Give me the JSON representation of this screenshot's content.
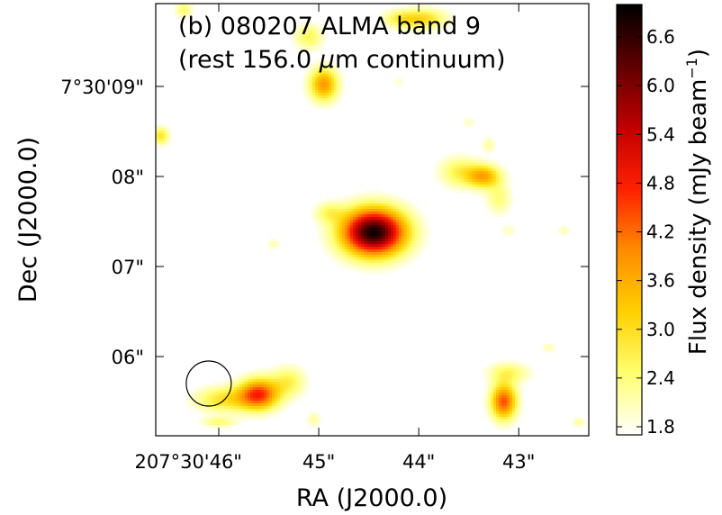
{
  "chart_data": {
    "type": "heatmap",
    "title_line1": "(b) 080207 ALMA band 9",
    "title_line2_prefix": "(rest 156.0 ",
    "title_line2_mu": "μ",
    "title_line2_suffix": "m continuum)",
    "xlabel": "RA (J2000.0)",
    "ylabel": "Dec (J2000.0)",
    "x_ticks": [
      {
        "value": 46,
        "label": "207°30'46\""
      },
      {
        "value": 45,
        "label": "45\""
      },
      {
        "value": 44,
        "label": "44\""
      },
      {
        "value": 43,
        "label": "43\""
      }
    ],
    "y_ticks": [
      {
        "value": 9,
        "label": "7°30'09\""
      },
      {
        "value": 8,
        "label": "08\""
      },
      {
        "value": 7,
        "label": "07\""
      },
      {
        "value": 6,
        "label": "06\""
      }
    ],
    "xlim": [
      46.63,
      42.3
    ],
    "ylim": [
      5.12,
      9.92
    ],
    "colorbar": {
      "label_prefix": "Flux density (mJy beam",
      "label_sup": "−1",
      "label_suffix": ")",
      "range": [
        1.7,
        7.0
      ],
      "ticks": [
        "1.8",
        "2.4",
        "3.0",
        "3.6",
        "4.2",
        "4.8",
        "5.4",
        "6.0",
        "6.6"
      ],
      "colormap": "hot_r",
      "stops": [
        "#ffffff",
        "#ffff70",
        "#ffd000",
        "#ff8c00",
        "#ff2000",
        "#c00000",
        "#600000",
        "#000000"
      ]
    },
    "beam": {
      "ra": 46.1,
      "dec": 5.7,
      "major": 0.5,
      "minor": 0.45
    },
    "sources": [
      {
        "ra": 44.45,
        "dec": 7.38,
        "peak": 6.9,
        "sx": 0.22,
        "sy": 0.18
      },
      {
        "ra": 45.6,
        "dec": 5.58,
        "peak": 4.6,
        "sx": 0.14,
        "sy": 0.12
      },
      {
        "ra": 45.95,
        "dec": 5.52,
        "peak": 2.9,
        "sx": 0.2,
        "sy": 0.1
      },
      {
        "ra": 45.3,
        "dec": 5.72,
        "peak": 2.6,
        "sx": 0.12,
        "sy": 0.12
      },
      {
        "ra": 43.15,
        "dec": 5.5,
        "peak": 4.4,
        "sx": 0.09,
        "sy": 0.14
      },
      {
        "ra": 43.1,
        "dec": 5.82,
        "peak": 2.5,
        "sx": 0.15,
        "sy": 0.08
      },
      {
        "ra": 43.35,
        "dec": 8.0,
        "peak": 3.6,
        "sx": 0.12,
        "sy": 0.09
      },
      {
        "ra": 43.6,
        "dec": 8.05,
        "peak": 2.6,
        "sx": 0.14,
        "sy": 0.12
      },
      {
        "ra": 43.2,
        "dec": 7.75,
        "peak": 2.4,
        "sx": 0.09,
        "sy": 0.12
      },
      {
        "ra": 43.3,
        "dec": 8.35,
        "peak": 2.2,
        "sx": 0.05,
        "sy": 0.06
      },
      {
        "ra": 44.95,
        "dec": 9.02,
        "peak": 3.8,
        "sx": 0.1,
        "sy": 0.13
      },
      {
        "ra": 45.1,
        "dec": 9.55,
        "peak": 2.6,
        "sx": 0.1,
        "sy": 0.1
      },
      {
        "ra": 43.95,
        "dec": 9.75,
        "peak": 3.0,
        "sx": 0.16,
        "sy": 0.08
      },
      {
        "ra": 44.2,
        "dec": 9.75,
        "peak": 2.5,
        "sx": 0.12,
        "sy": 0.07
      },
      {
        "ra": 44.9,
        "dec": 7.6,
        "peak": 2.4,
        "sx": 0.1,
        "sy": 0.08
      },
      {
        "ra": 46.58,
        "dec": 8.45,
        "peak": 2.9,
        "sx": 0.06,
        "sy": 0.07
      },
      {
        "ra": 46.35,
        "dec": 9.85,
        "peak": 2.5,
        "sx": 0.06,
        "sy": 0.06
      },
      {
        "ra": 42.55,
        "dec": 7.4,
        "peak": 2.1,
        "sx": 0.05,
        "sy": 0.04
      },
      {
        "ra": 45.45,
        "dec": 7.25,
        "peak": 2.1,
        "sx": 0.05,
        "sy": 0.04
      },
      {
        "ra": 45.05,
        "dec": 5.3,
        "peak": 2.2,
        "sx": 0.05,
        "sy": 0.06
      },
      {
        "ra": 43.5,
        "dec": 8.6,
        "peak": 2.0,
        "sx": 0.05,
        "sy": 0.05
      },
      {
        "ra": 42.4,
        "dec": 5.27,
        "peak": 2.2,
        "sx": 0.05,
        "sy": 0.04
      },
      {
        "ra": 42.7,
        "dec": 6.1,
        "peak": 2.1,
        "sx": 0.05,
        "sy": 0.04
      },
      {
        "ra": 46.0,
        "dec": 5.27,
        "peak": 2.4,
        "sx": 0.12,
        "sy": 0.04
      },
      {
        "ra": 43.1,
        "dec": 7.4,
        "peak": 2.0,
        "sx": 0.06,
        "sy": 0.05
      },
      {
        "ra": 44.2,
        "dec": 9.05,
        "peak": 1.9,
        "sx": 0.06,
        "sy": 0.06
      }
    ]
  }
}
